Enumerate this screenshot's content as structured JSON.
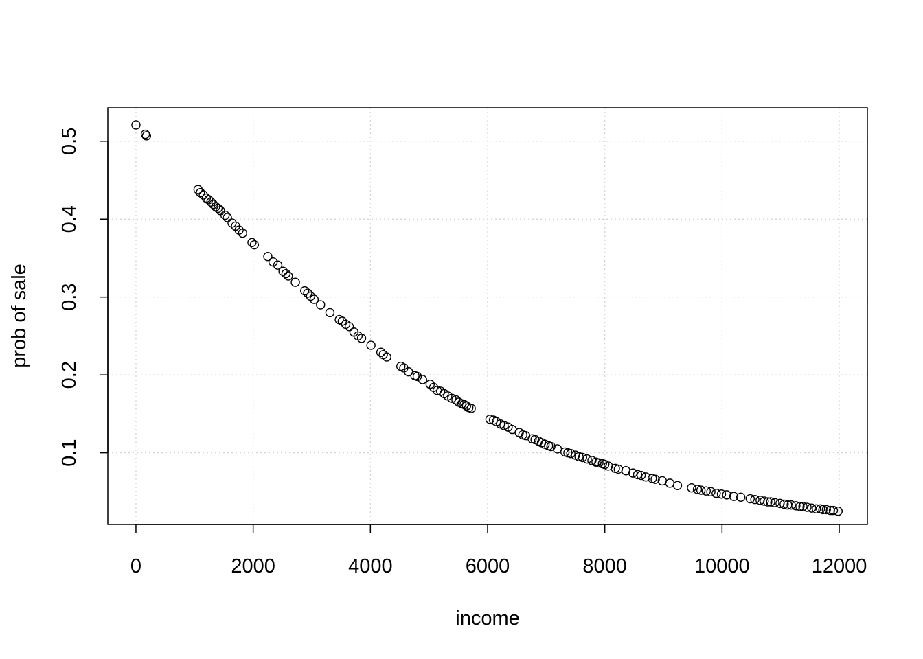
{
  "chart_data": {
    "type": "scatter",
    "title": "",
    "xlabel": "income",
    "ylabel": "prob of sale",
    "xlim": [
      -480,
      12480
    ],
    "ylim": [
      0.008,
      0.543
    ],
    "x_ticks": [
      0,
      2000,
      4000,
      6000,
      8000,
      10000,
      12000
    ],
    "x_tick_labels": [
      "0",
      "2000",
      "4000",
      "6000",
      "8000",
      "10000",
      "12000"
    ],
    "y_ticks": [
      0.1,
      0.2,
      0.3,
      0.4,
      0.5
    ],
    "y_tick_labels": [
      "0.1",
      "0.2",
      "0.3",
      "0.4",
      "0.5"
    ],
    "grid": true,
    "legend": "none",
    "marker": "open-circle",
    "colors": {
      "points": "#000000",
      "grid": "#d3d3d3",
      "frame": "#000000"
    },
    "points": [
      [
        0,
        0.521
      ],
      [
        160,
        0.509
      ],
      [
        180,
        0.507
      ],
      [
        1060,
        0.438
      ],
      [
        1100,
        0.434
      ],
      [
        1150,
        0.431
      ],
      [
        1200,
        0.427
      ],
      [
        1240,
        0.425
      ],
      [
        1280,
        0.422
      ],
      [
        1320,
        0.419
      ],
      [
        1360,
        0.416
      ],
      [
        1400,
        0.414
      ],
      [
        1440,
        0.411
      ],
      [
        1520,
        0.405
      ],
      [
        1560,
        0.402
      ],
      [
        1640,
        0.395
      ],
      [
        1700,
        0.391
      ],
      [
        1760,
        0.386
      ],
      [
        1820,
        0.382
      ],
      [
        1980,
        0.37
      ],
      [
        2020,
        0.367
      ],
      [
        2250,
        0.352
      ],
      [
        2340,
        0.345
      ],
      [
        2420,
        0.341
      ],
      [
        2510,
        0.333
      ],
      [
        2560,
        0.33
      ],
      [
        2600,
        0.327
      ],
      [
        2720,
        0.319
      ],
      [
        2880,
        0.308
      ],
      [
        2930,
        0.305
      ],
      [
        2980,
        0.301
      ],
      [
        3040,
        0.297
      ],
      [
        3150,
        0.29
      ],
      [
        3310,
        0.28
      ],
      [
        3470,
        0.271
      ],
      [
        3520,
        0.269
      ],
      [
        3580,
        0.265
      ],
      [
        3640,
        0.262
      ],
      [
        3720,
        0.255
      ],
      [
        3790,
        0.25
      ],
      [
        3850,
        0.247
      ],
      [
        4010,
        0.238
      ],
      [
        4180,
        0.229
      ],
      [
        4220,
        0.226
      ],
      [
        4280,
        0.223
      ],
      [
        4520,
        0.211
      ],
      [
        4570,
        0.209
      ],
      [
        4650,
        0.204
      ],
      [
        4760,
        0.199
      ],
      [
        4800,
        0.198
      ],
      [
        4890,
        0.194
      ],
      [
        5020,
        0.188
      ],
      [
        5080,
        0.184
      ],
      [
        5140,
        0.18
      ],
      [
        5200,
        0.179
      ],
      [
        5260,
        0.176
      ],
      [
        5320,
        0.173
      ],
      [
        5390,
        0.17
      ],
      [
        5460,
        0.168
      ],
      [
        5510,
        0.165
      ],
      [
        5560,
        0.163
      ],
      [
        5600,
        0.162
      ],
      [
        5640,
        0.16
      ],
      [
        5680,
        0.158
      ],
      [
        5720,
        0.157
      ],
      [
        6040,
        0.143
      ],
      [
        6100,
        0.142
      ],
      [
        6150,
        0.14
      ],
      [
        6220,
        0.137
      ],
      [
        6280,
        0.135
      ],
      [
        6350,
        0.133
      ],
      [
        6420,
        0.13
      ],
      [
        6540,
        0.126
      ],
      [
        6600,
        0.123
      ],
      [
        6650,
        0.122
      ],
      [
        6760,
        0.118
      ],
      [
        6810,
        0.117
      ],
      [
        6870,
        0.115
      ],
      [
        6920,
        0.113
      ],
      [
        6980,
        0.111
      ],
      [
        7040,
        0.109
      ],
      [
        7080,
        0.108
      ],
      [
        7190,
        0.105
      ],
      [
        7320,
        0.101
      ],
      [
        7370,
        0.1
      ],
      [
        7420,
        0.099
      ],
      [
        7500,
        0.097
      ],
      [
        7560,
        0.095
      ],
      [
        7620,
        0.094
      ],
      [
        7700,
        0.092
      ],
      [
        7780,
        0.09
      ],
      [
        7850,
        0.088
      ],
      [
        7900,
        0.087
      ],
      [
        7960,
        0.086
      ],
      [
        8000,
        0.085
      ],
      [
        8060,
        0.083
      ],
      [
        8180,
        0.08
      ],
      [
        8230,
        0.079
      ],
      [
        8360,
        0.077
      ],
      [
        8480,
        0.074
      ],
      [
        8560,
        0.072
      ],
      [
        8620,
        0.071
      ],
      [
        8700,
        0.069
      ],
      [
        8810,
        0.067
      ],
      [
        8860,
        0.066
      ],
      [
        8980,
        0.064
      ],
      [
        9110,
        0.061
      ],
      [
        9240,
        0.058
      ],
      [
        9480,
        0.055
      ],
      [
        9580,
        0.053
      ],
      [
        9640,
        0.052
      ],
      [
        9730,
        0.051
      ],
      [
        9810,
        0.05
      ],
      [
        9900,
        0.048
      ],
      [
        9990,
        0.047
      ],
      [
        10080,
        0.046
      ],
      [
        10200,
        0.044
      ],
      [
        10320,
        0.043
      ],
      [
        10480,
        0.041
      ],
      [
        10560,
        0.04
      ],
      [
        10650,
        0.039
      ],
      [
        10720,
        0.038
      ],
      [
        10780,
        0.037
      ],
      [
        10830,
        0.037
      ],
      [
        10900,
        0.036
      ],
      [
        10990,
        0.035
      ],
      [
        11060,
        0.034
      ],
      [
        11120,
        0.033
      ],
      [
        11180,
        0.033
      ],
      [
        11260,
        0.032
      ],
      [
        11330,
        0.031
      ],
      [
        11380,
        0.031
      ],
      [
        11450,
        0.03
      ],
      [
        11530,
        0.029
      ],
      [
        11610,
        0.028
      ],
      [
        11680,
        0.028
      ],
      [
        11720,
        0.027
      ],
      [
        11780,
        0.027
      ],
      [
        11850,
        0.026
      ],
      [
        11900,
        0.026
      ],
      [
        11980,
        0.025
      ]
    ]
  }
}
